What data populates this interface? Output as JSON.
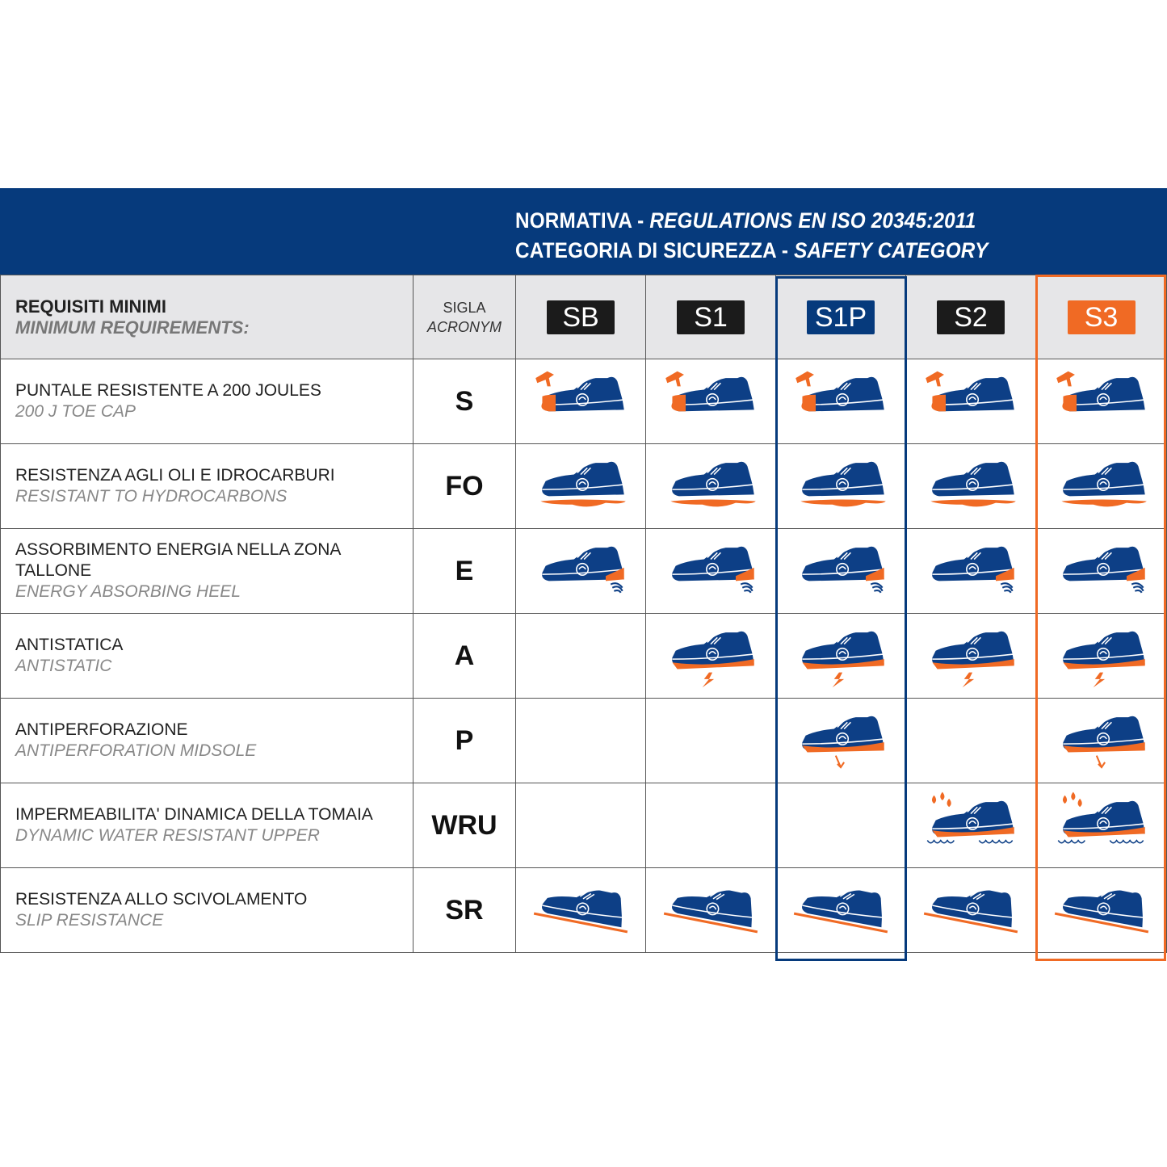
{
  "header": {
    "line1_a": "NORMATIVA - ",
    "line1_b": "REGULATIONS EN ISO 20345:2011",
    "line2_a": "CATEGORIA DI SICUREZZA - ",
    "line2_b": "SAFETY CATEGORY"
  },
  "table": {
    "req_title": "REQUISITI MINIMI",
    "req_title_en": "MINIMUM REQUIREMENTS:",
    "acronym_it": "SIGLA",
    "acronym_en": "ACRONYM",
    "categories": [
      {
        "label": "SB",
        "color": "#1b1b1b"
      },
      {
        "label": "S1",
        "color": "#1b1b1b"
      },
      {
        "label": "S1P",
        "color": "#063a7c"
      },
      {
        "label": "S2",
        "color": "#1b1b1b"
      },
      {
        "label": "S3",
        "color": "#f06a24"
      }
    ],
    "rows": [
      {
        "it": "PUNTALE RESISTENTE A 200 JOULES",
        "en": "200 J TOE CAP",
        "acronym": "S",
        "feature": "toe-cap",
        "applies": [
          true,
          true,
          true,
          true,
          true
        ]
      },
      {
        "it": "RESISTENZA AGLI OLI E IDROCARBURI",
        "en": "RESISTANT TO HYDROCARBONS",
        "acronym": "FO",
        "feature": "oil-resistant-sole",
        "applies": [
          true,
          true,
          true,
          true,
          true
        ]
      },
      {
        "it": "ASSORBIMENTO ENERGIA NELLA ZONA TALLONE",
        "en": "ENERGY ABSORBING HEEL",
        "acronym": "E",
        "feature": "energy-heel",
        "applies": [
          true,
          true,
          true,
          true,
          true
        ]
      },
      {
        "it": "ANTISTATICA",
        "en": "ANTISTATIC",
        "acronym": "A",
        "feature": "antistatic",
        "applies": [
          false,
          true,
          true,
          true,
          true
        ]
      },
      {
        "it": "ANTIPERFORAZIONE",
        "en": "ANTIPERFORATION MIDSOLE",
        "acronym": "P",
        "feature": "antiperforation",
        "applies": [
          false,
          false,
          true,
          false,
          true
        ]
      },
      {
        "it": "IMPERMEABILITA' DINAMICA DELLA TOMAIA",
        "en": "DYNAMIC WATER  RESISTANT UPPER",
        "acronym": "WRU",
        "feature": "water-resistant",
        "applies": [
          false,
          false,
          false,
          true,
          true
        ]
      },
      {
        "it": "RESISTENZA ALLO SCIVOLAMENTO",
        "en": "SLIP RESISTANCE",
        "acronym": "SR",
        "feature": "slip-resistance",
        "applies": [
          true,
          true,
          true,
          true,
          true
        ]
      }
    ]
  },
  "colors": {
    "navy": "#063a7c",
    "orange": "#f06a24",
    "header_bg": "#e6e6e8"
  }
}
